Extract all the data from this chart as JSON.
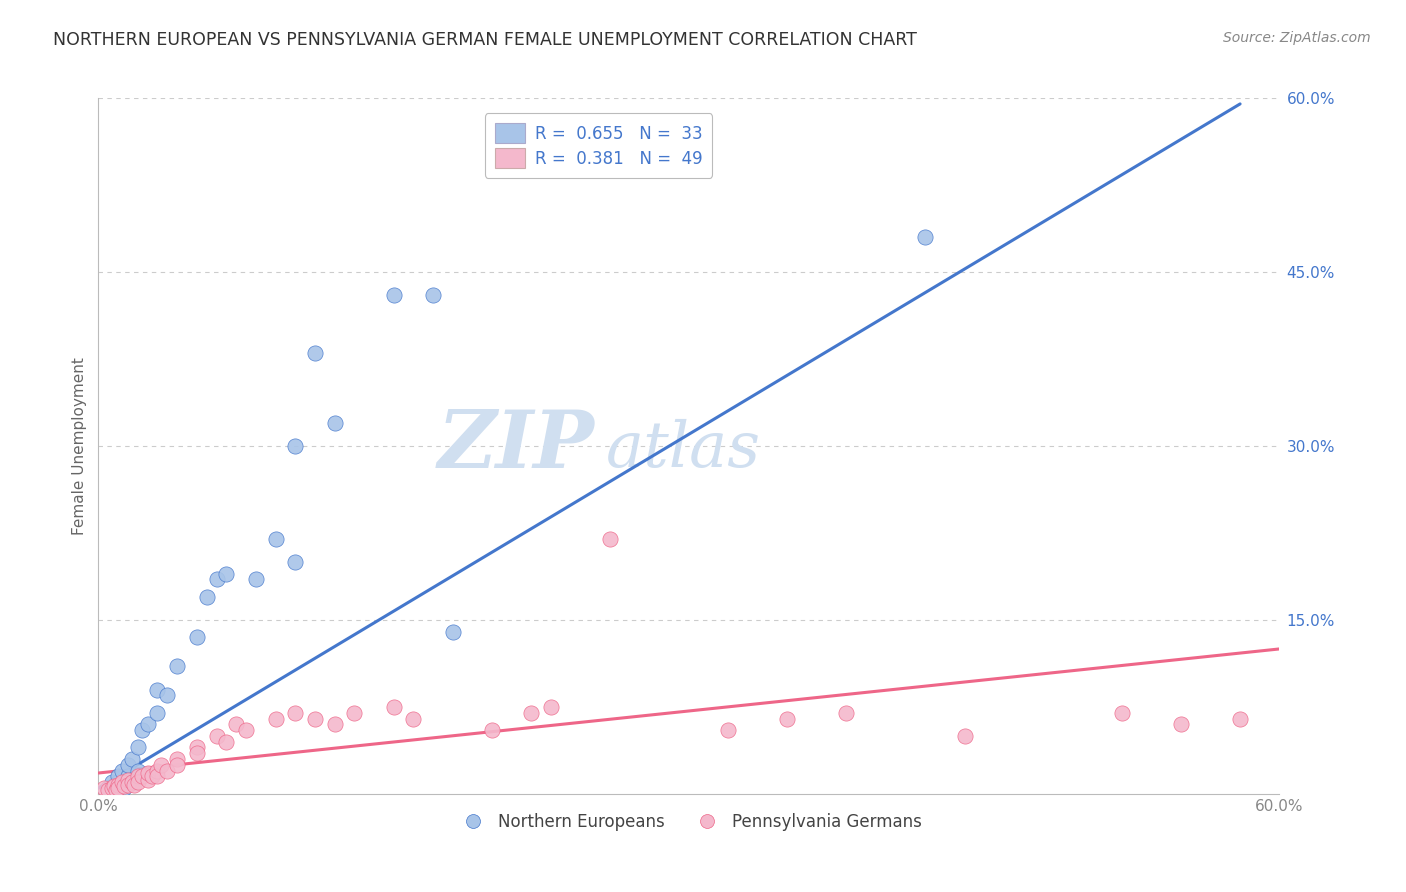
{
  "title": "NORTHERN EUROPEAN VS PENNSYLVANIA GERMAN FEMALE UNEMPLOYMENT CORRELATION CHART",
  "source": "Source: ZipAtlas.com",
  "ylabel": "Female Unemployment",
  "xlim": [
    0.0,
    0.6
  ],
  "ylim": [
    0.0,
    0.6
  ],
  "xtick_vals": [
    0.0,
    0.6
  ],
  "xtick_labels": [
    "0.0%",
    "60.0%"
  ],
  "ytick_vals_right": [
    0.6,
    0.45,
    0.3,
    0.15
  ],
  "ytick_labels_right": [
    "60.0%",
    "45.0%",
    "30.0%",
    "15.0%"
  ],
  "legend_R_blue": "0.655",
  "legend_N_blue": "33",
  "legend_R_pink": "0.381",
  "legend_N_pink": "49",
  "blue_color": "#a8c4e8",
  "pink_color": "#f4b8cc",
  "line_blue": "#4477cc",
  "line_pink": "#ee6688",
  "watermark_zip": "ZIP",
  "watermark_atlas": "atlas",
  "watermark_color": "#d0dff0",
  "blue_scatter": [
    [
      0.005,
      0.005
    ],
    [
      0.007,
      0.01
    ],
    [
      0.008,
      0.005
    ],
    [
      0.01,
      0.01
    ],
    [
      0.01,
      0.015
    ],
    [
      0.012,
      0.02
    ],
    [
      0.013,
      0.005
    ],
    [
      0.015,
      0.015
    ],
    [
      0.015,
      0.025
    ],
    [
      0.017,
      0.03
    ],
    [
      0.018,
      0.01
    ],
    [
      0.02,
      0.04
    ],
    [
      0.02,
      0.02
    ],
    [
      0.022,
      0.055
    ],
    [
      0.025,
      0.06
    ],
    [
      0.03,
      0.07
    ],
    [
      0.03,
      0.09
    ],
    [
      0.035,
      0.085
    ],
    [
      0.04,
      0.11
    ],
    [
      0.05,
      0.135
    ],
    [
      0.055,
      0.17
    ],
    [
      0.06,
      0.185
    ],
    [
      0.065,
      0.19
    ],
    [
      0.08,
      0.185
    ],
    [
      0.09,
      0.22
    ],
    [
      0.1,
      0.3
    ],
    [
      0.11,
      0.38
    ],
    [
      0.12,
      0.32
    ],
    [
      0.15,
      0.43
    ],
    [
      0.17,
      0.43
    ],
    [
      0.42,
      0.48
    ],
    [
      0.1,
      0.2
    ],
    [
      0.18,
      0.14
    ]
  ],
  "pink_scatter": [
    [
      0.003,
      0.005
    ],
    [
      0.005,
      0.003
    ],
    [
      0.007,
      0.005
    ],
    [
      0.008,
      0.007
    ],
    [
      0.009,
      0.003
    ],
    [
      0.01,
      0.008
    ],
    [
      0.01,
      0.005
    ],
    [
      0.012,
      0.01
    ],
    [
      0.013,
      0.007
    ],
    [
      0.015,
      0.012
    ],
    [
      0.015,
      0.008
    ],
    [
      0.017,
      0.01
    ],
    [
      0.018,
      0.008
    ],
    [
      0.02,
      0.015
    ],
    [
      0.02,
      0.01
    ],
    [
      0.022,
      0.015
    ],
    [
      0.025,
      0.012
    ],
    [
      0.025,
      0.018
    ],
    [
      0.027,
      0.015
    ],
    [
      0.03,
      0.02
    ],
    [
      0.03,
      0.015
    ],
    [
      0.032,
      0.025
    ],
    [
      0.035,
      0.02
    ],
    [
      0.04,
      0.03
    ],
    [
      0.04,
      0.025
    ],
    [
      0.05,
      0.04
    ],
    [
      0.05,
      0.035
    ],
    [
      0.06,
      0.05
    ],
    [
      0.065,
      0.045
    ],
    [
      0.07,
      0.06
    ],
    [
      0.075,
      0.055
    ],
    [
      0.09,
      0.065
    ],
    [
      0.1,
      0.07
    ],
    [
      0.11,
      0.065
    ],
    [
      0.12,
      0.06
    ],
    [
      0.13,
      0.07
    ],
    [
      0.15,
      0.075
    ],
    [
      0.16,
      0.065
    ],
    [
      0.2,
      0.055
    ],
    [
      0.22,
      0.07
    ],
    [
      0.23,
      0.075
    ],
    [
      0.26,
      0.22
    ],
    [
      0.32,
      0.055
    ],
    [
      0.35,
      0.065
    ],
    [
      0.38,
      0.07
    ],
    [
      0.44,
      0.05
    ],
    [
      0.52,
      0.07
    ],
    [
      0.55,
      0.06
    ],
    [
      0.58,
      0.065
    ]
  ],
  "blue_line_x": [
    0.0,
    0.58
  ],
  "blue_line_y": [
    0.005,
    0.595
  ],
  "pink_line_x": [
    0.0,
    0.6
  ],
  "pink_line_y": [
    0.018,
    0.125
  ],
  "grid_color": "#cccccc",
  "bg_color": "#ffffff",
  "title_color": "#333333",
  "source_color": "#888888",
  "axis_label_color": "#666666",
  "tick_color": "#888888"
}
